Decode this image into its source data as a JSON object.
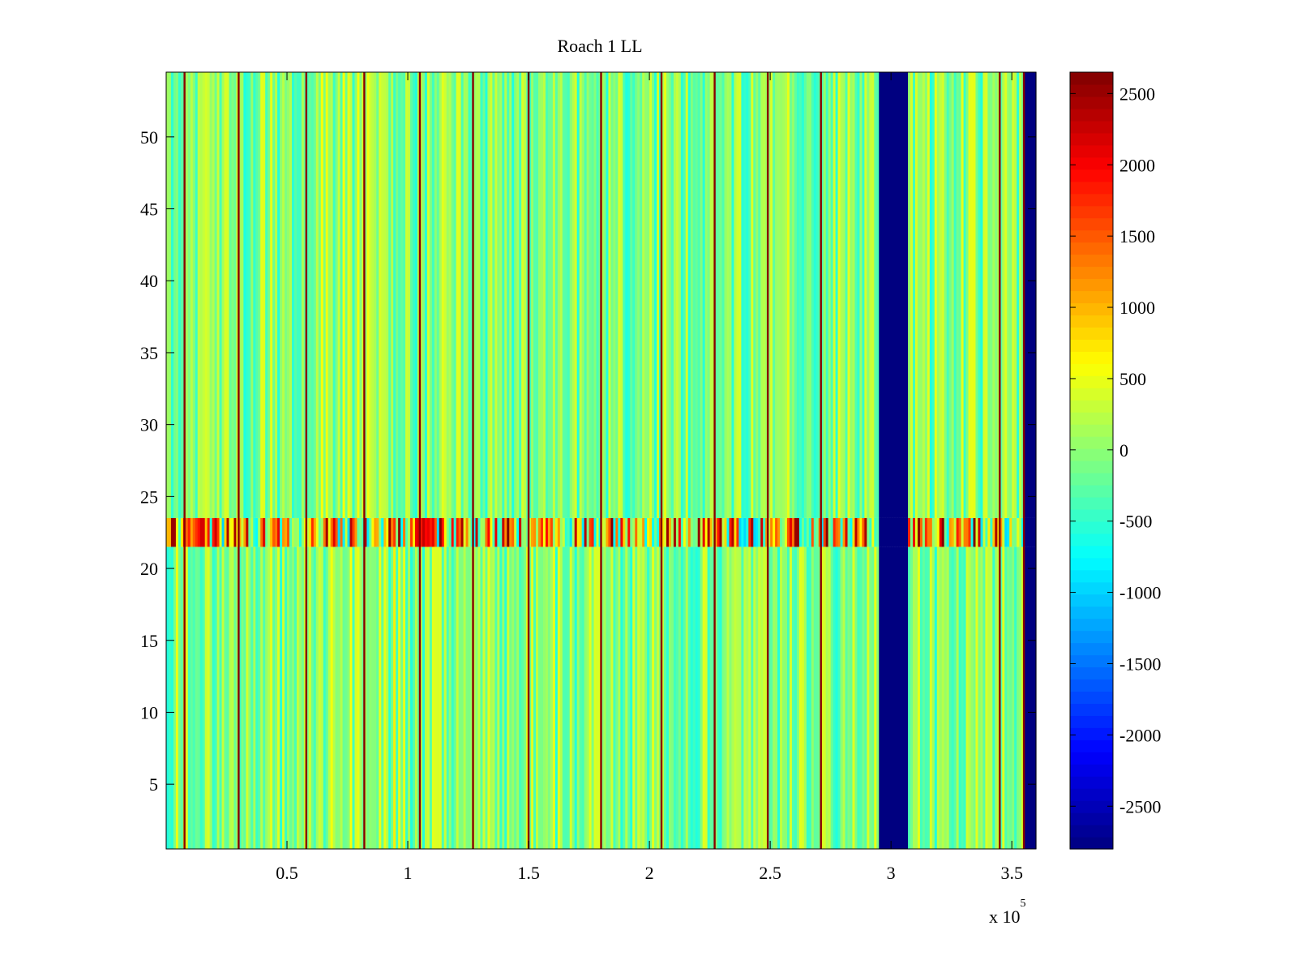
{
  "chart_data": {
    "type": "heatmap",
    "title": "Roach 1 LL",
    "xlabel": "",
    "ylabel": "",
    "x_exponent_label": "x 10",
    "x_exponent_power": "5",
    "xlim": [
      0,
      3.6
    ],
    "ylim": [
      0.5,
      54.5
    ],
    "xticks": [
      {
        "value": 0.5,
        "label": "0.5"
      },
      {
        "value": 1.0,
        "label": "1"
      },
      {
        "value": 1.5,
        "label": "1.5"
      },
      {
        "value": 2.0,
        "label": "2"
      },
      {
        "value": 2.5,
        "label": "2.5"
      },
      {
        "value": 3.0,
        "label": "3"
      },
      {
        "value": 3.5,
        "label": "3.5"
      }
    ],
    "yticks": [
      {
        "value": 5,
        "label": "5"
      },
      {
        "value": 10,
        "label": "10"
      },
      {
        "value": 15,
        "label": "15"
      },
      {
        "value": 20,
        "label": "20"
      },
      {
        "value": 25,
        "label": "25"
      },
      {
        "value": 30,
        "label": "30"
      },
      {
        "value": 35,
        "label": "35"
      },
      {
        "value": 40,
        "label": "40"
      },
      {
        "value": 45,
        "label": "45"
      },
      {
        "value": 50,
        "label": "50"
      }
    ],
    "colorbar": {
      "colormap": "jet",
      "range": [
        -2800,
        2650
      ],
      "ticks": [
        {
          "value": 2500,
          "label": "2500"
        },
        {
          "value": 2000,
          "label": "2000"
        },
        {
          "value": 1500,
          "label": "1500"
        },
        {
          "value": 1000,
          "label": "1000"
        },
        {
          "value": 500,
          "label": "500"
        },
        {
          "value": 0,
          "label": "0"
        },
        {
          "value": -500,
          "label": "-500"
        },
        {
          "value": -1000,
          "label": "-1000"
        },
        {
          "value": -1500,
          "label": "-1500"
        },
        {
          "value": -2000,
          "label": "-2000"
        },
        {
          "value": -2500,
          "label": "-2500"
        }
      ]
    },
    "background_value_range": [
      -600,
      500
    ],
    "vertical_spike_lines_x": [
      0.076,
      0.3,
      0.58,
      0.82,
      1.05,
      1.27,
      1.5,
      1.8,
      2.05,
      2.27,
      2.49,
      2.71,
      3.45,
      3.55
    ],
    "saturated_low_bands": [
      {
        "x_start": 2.95,
        "x_end": 3.07,
        "value": -2800
      },
      {
        "x_start": 3.55,
        "x_end": 3.6,
        "value": -2800
      }
    ],
    "anomalous_rows": {
      "y_start": 21.5,
      "y_end": 23.5,
      "value_range": [
        -1000,
        2650
      ]
    },
    "notes_visible": false
  }
}
